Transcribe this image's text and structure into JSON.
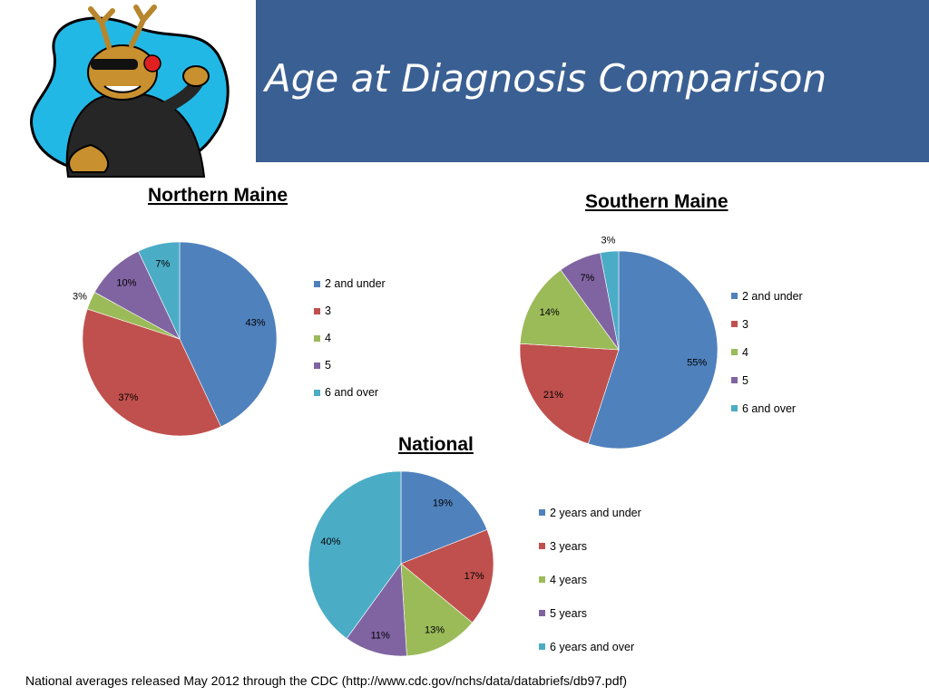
{
  "slide": {
    "title": "Age at Diagnosis Comparison",
    "footnote": "National averages released May 2012 through the CDC (http://www.cdc.gov/nchs/data/databriefs/db97.pdf)"
  },
  "colors": {
    "header_band": "#3a5f93",
    "series": [
      "#4f81bd",
      "#c0504d",
      "#9bbb59",
      "#8064a2",
      "#4bacc6"
    ]
  },
  "chart_data": [
    {
      "type": "pie",
      "title": "Northern Maine",
      "categories": [
        "2 and under",
        "3",
        "4",
        "5",
        "6 and over"
      ],
      "values": [
        43,
        37,
        3,
        10,
        7
      ],
      "labels": [
        "43%",
        "37%",
        "3%",
        "10%",
        "7%"
      ],
      "legend_position": "right"
    },
    {
      "type": "pie",
      "title": "Southern Maine",
      "categories": [
        "2 and under",
        "3",
        "4",
        "5",
        "6 and over"
      ],
      "values": [
        55,
        21,
        14,
        7,
        3
      ],
      "labels": [
        "55%",
        "21%",
        "14%",
        "7%",
        "3%"
      ],
      "legend_position": "right"
    },
    {
      "type": "pie",
      "title": "National",
      "categories": [
        "2 years and under",
        "3 years",
        "4 years",
        "5 years",
        "6 years and over"
      ],
      "values": [
        19,
        17,
        13,
        11,
        40
      ],
      "labels": [
        "19%",
        "17%",
        "13%",
        "11%",
        "40%"
      ],
      "legend_position": "right"
    }
  ]
}
